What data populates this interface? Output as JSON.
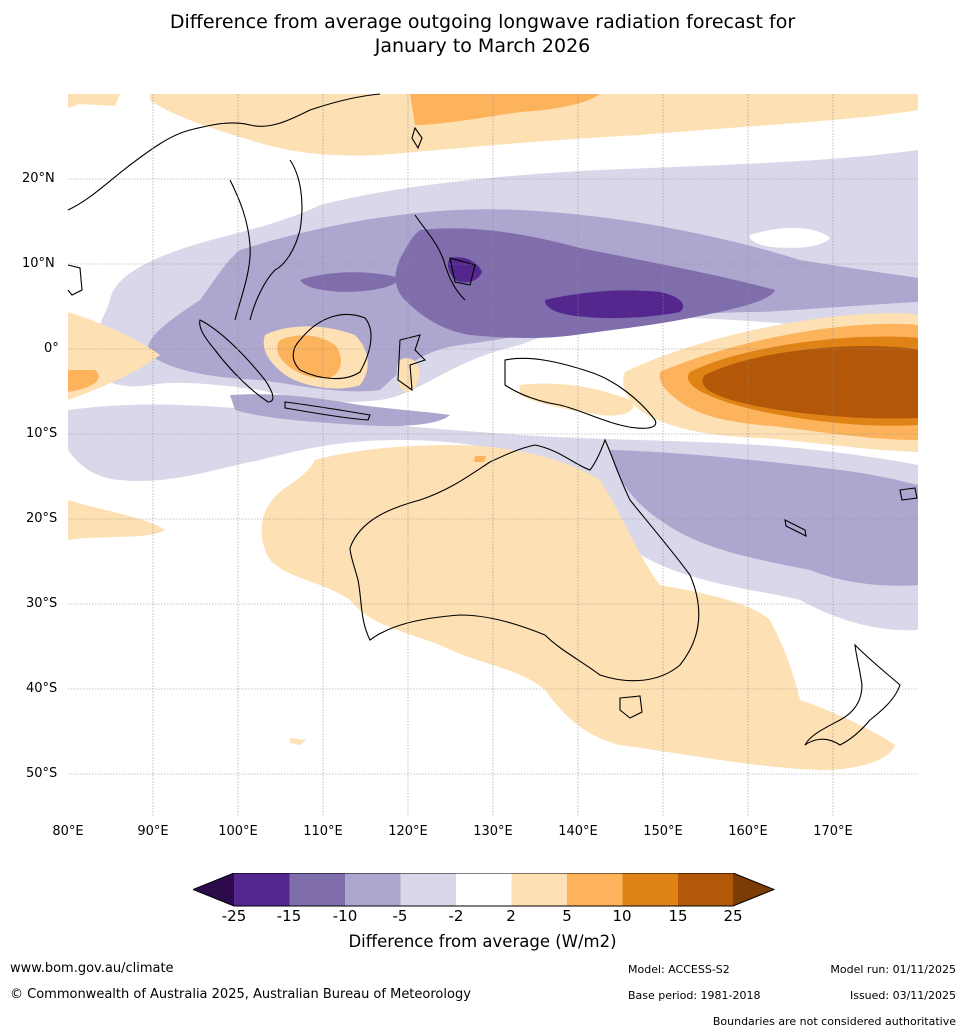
{
  "title_line1": "Difference from average outgoing longwave radiation forecast for",
  "title_line2": "January to March 2026",
  "lat_labels": [
    "20°N",
    "10°N",
    "0°",
    "10°S",
    "20°S",
    "30°S",
    "40°S",
    "50°S"
  ],
  "lon_labels": [
    "80°E",
    "90°E",
    "100°E",
    "110°E",
    "120°E",
    "130°E",
    "140°E",
    "150°E",
    "160°E",
    "170°E"
  ],
  "colorbar": {
    "ticks": [
      "-25",
      "-15",
      "-10",
      "-5",
      "-2",
      "2",
      "5",
      "10",
      "15",
      "25"
    ],
    "label": "Difference from average (W/m2)",
    "colors": {
      "below_min": "#2d0a4a",
      "m25_m15": "#54278f",
      "m15_m10": "#7f6eab",
      "m10_m5": "#ada6cf",
      "m5_m2": "#d8d8ea",
      "m2_p2": "#ffffff",
      "p2_p5": "#fde0b3",
      "p5_p10": "#fcb35c",
      "p10_p15": "#e08317",
      "p15_p25": "#b35708",
      "above_max": "#7a3b04"
    }
  },
  "footer": {
    "website": "www.bom.gov.au/climate",
    "copyright": "© Commonwealth of Australia 2025, Australian Bureau of Meteorology",
    "model": "Model: ACCESS-S2",
    "base_period": "Base period: 1981-2018",
    "model_run": "Model run: 01/11/2025",
    "issued": "Issued: 03/11/2025",
    "disclaimer": "Boundaries are not considered authoritative"
  }
}
